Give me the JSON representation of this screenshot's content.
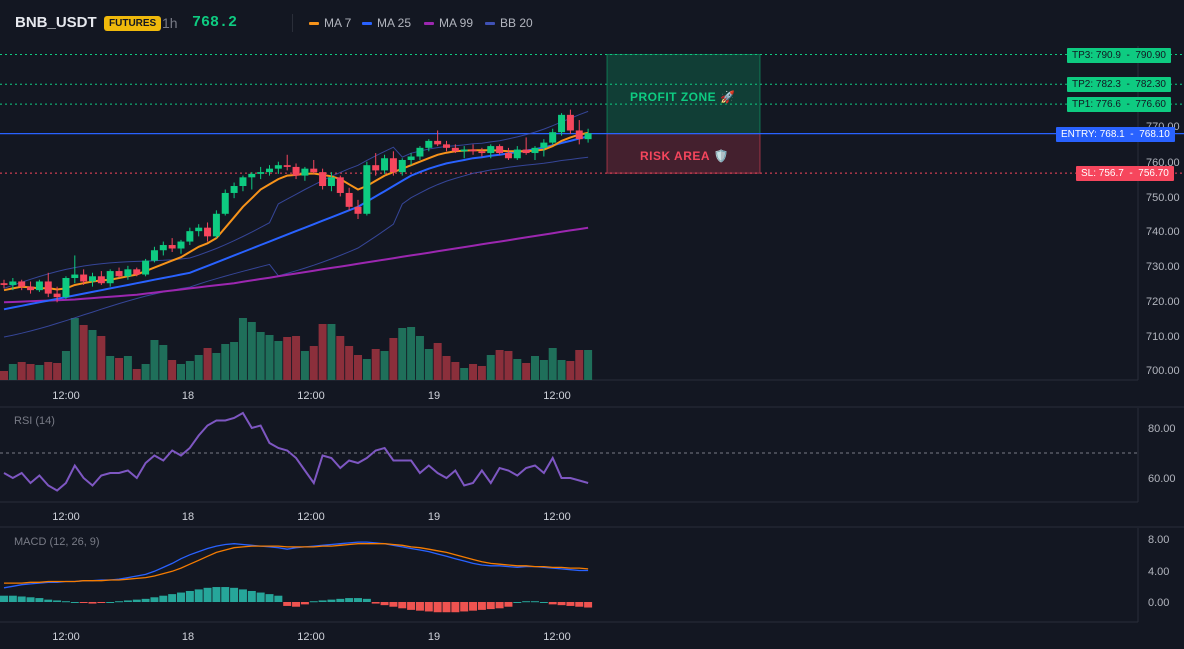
{
  "header": {
    "symbol": "BNB_USDT",
    "badge": "FUTURES",
    "timeframe": "1h",
    "last_price": "768.2",
    "legend": [
      {
        "label": "MA 7",
        "color": "#f7931a"
      },
      {
        "label": "MA 25",
        "color": "#2962ff"
      },
      {
        "label": "MA 99",
        "color": "#9c27b0"
      },
      {
        "label": "BB 20",
        "color": "#3f51b5"
      }
    ]
  },
  "colors": {
    "up": "#0ecb81",
    "down": "#f6465d",
    "vol_up": "#1f6f5a",
    "vol_down": "#8b2f3b",
    "ma7": "#f7931a",
    "ma25": "#2962ff",
    "ma99": "#9c27b0",
    "bb": "#3f51b5",
    "rsi": "#7e57c2",
    "macd": "#2962ff",
    "signal": "#f57c00",
    "hist_up": "#26a69a",
    "hist_down": "#ef5350",
    "entry": "#2962ff"
  },
  "price_axis": {
    "ticks": [
      "770.00",
      "760.00",
      "750.00",
      "740.00",
      "730.00",
      "720.00",
      "710.00",
      "700.00"
    ],
    "range": [
      695,
      795
    ]
  },
  "time_axis": [
    "12:00",
    "18",
    "12:00",
    "19",
    "12:00"
  ],
  "levels": {
    "tp3": {
      "tag": "TP3: 790.9",
      "value": "790.90",
      "price": 790.9
    },
    "tp2": {
      "tag": "TP2: 782.3",
      "value": "782.30",
      "price": 782.3
    },
    "tp1": {
      "tag": "TP1: 776.6",
      "value": "776.60",
      "price": 776.6
    },
    "entry": {
      "tag": "ENTRY: 768.1",
      "value": "768.10",
      "price": 768.1
    },
    "sl": {
      "tag": "SL: 756.7",
      "value": "756.70",
      "price": 756.7
    }
  },
  "zones": {
    "profit": "PROFIT ZONE 🚀",
    "risk": "RISK AREA 🛡️"
  },
  "rsi": {
    "title": "RSI (14)",
    "ticks": [
      "80.00",
      "60.00"
    ],
    "range": [
      50,
      90
    ],
    "level": 70,
    "values": [
      62,
      60,
      62,
      58,
      61,
      57,
      55,
      58,
      65,
      60,
      57,
      61,
      62,
      62,
      63,
      60,
      66,
      69,
      67,
      71,
      69,
      72,
      77,
      81,
      83,
      83,
      84,
      86,
      80,
      81,
      74,
      72,
      71,
      68,
      63,
      58,
      69,
      68,
      64,
      67,
      66,
      68,
      71,
      72,
      67,
      67,
      67,
      62,
      65,
      62,
      60,
      63,
      57,
      58,
      63,
      58,
      64,
      63,
      61,
      64,
      65,
      62,
      68,
      60,
      60,
      59,
      58
    ]
  },
  "macd": {
    "title": "MACD (12, 26, 9)",
    "ticks": [
      "8.00",
      "4.00",
      "0.00"
    ],
    "range": [
      -2,
      9
    ],
    "macd": [
      1.8,
      2.0,
      2.2,
      2.3,
      2.4,
      2.5,
      2.5,
      2.6,
      2.6,
      2.7,
      2.7,
      2.8,
      2.8,
      2.9,
      3.1,
      3.3,
      3.5,
      3.9,
      4.4,
      4.9,
      5.5,
      6.0,
      6.4,
      6.8,
      7.1,
      7.3,
      7.4,
      7.3,
      7.2,
      7.1,
      7.0,
      6.9,
      6.7,
      6.9,
      7.0,
      7.1,
      7.2,
      7.3,
      7.4,
      7.5,
      7.6,
      7.6,
      7.5,
      7.4,
      7.2,
      7.0,
      6.8,
      6.6,
      6.4,
      6.1,
      5.8,
      5.5,
      5.2,
      4.9,
      4.7,
      4.6,
      4.6,
      4.5,
      4.4,
      4.5,
      4.5,
      4.4,
      4.3,
      4.2,
      4.1,
      4.0,
      4.0
    ],
    "signal": [
      2.4,
      2.4,
      2.4,
      2.5,
      2.5,
      2.6,
      2.6,
      2.6,
      2.6,
      2.7,
      2.7,
      2.7,
      2.8,
      2.8,
      2.9,
      3.0,
      3.1,
      3.3,
      3.6,
      3.9,
      4.3,
      4.8,
      5.3,
      5.8,
      6.3,
      6.6,
      6.9,
      7.0,
      7.1,
      7.1,
      7.1,
      7.1,
      7.0,
      7.0,
      7.0,
      7.0,
      7.1,
      7.1,
      7.2,
      7.3,
      7.4,
      7.4,
      7.4,
      7.4,
      7.3,
      7.2,
      7.0,
      6.9,
      6.7,
      6.5,
      6.3,
      6.0,
      5.7,
      5.4,
      5.1,
      4.9,
      4.8,
      4.7,
      4.6,
      4.6,
      4.5,
      4.5,
      4.4,
      4.4,
      4.3,
      4.3,
      4.2
    ],
    "hist": [
      0.8,
      0.8,
      0.7,
      0.6,
      0.5,
      0.3,
      0.2,
      0.1,
      0.0,
      -0.1,
      -0.2,
      -0.1,
      0.0,
      0.1,
      0.2,
      0.3,
      0.4,
      0.6,
      0.8,
      1.0,
      1.2,
      1.4,
      1.6,
      1.8,
      1.9,
      1.9,
      1.8,
      1.6,
      1.4,
      1.2,
      1.0,
      0.8,
      -0.5,
      -0.6,
      -0.3,
      0.1,
      0.2,
      0.3,
      0.4,
      0.5,
      0.5,
      0.4,
      -0.2,
      -0.4,
      -0.6,
      -0.8,
      -1.0,
      -1.1,
      -1.2,
      -1.3,
      -1.3,
      -1.3,
      -1.2,
      -1.1,
      -1.0,
      -0.9,
      -0.8,
      -0.6,
      0.0,
      0.1,
      0.1,
      0.0,
      -0.3,
      -0.4,
      -0.5,
      -0.6,
      -0.7
    ]
  },
  "chart_data": {
    "type": "candlestick",
    "candles": [
      [
        725.0,
        726.0,
        723.5,
        724.5
      ],
      [
        724.5,
        726.5,
        723.0,
        725.5
      ],
      [
        725.5,
        726.0,
        723.0,
        724.0
      ],
      [
        724.0,
        725.5,
        722.0,
        723.0
      ],
      [
        723.0,
        726.0,
        722.5,
        725.5
      ],
      [
        725.5,
        728.0,
        721.0,
        722.0
      ],
      [
        722.0,
        724.0,
        719.5,
        721.0
      ],
      [
        721.0,
        727.0,
        720.5,
        726.5
      ],
      [
        726.5,
        733.0,
        725.0,
        727.5
      ],
      [
        727.5,
        729.0,
        724.5,
        725.5
      ],
      [
        725.5,
        728.0,
        724.0,
        727.0
      ],
      [
        727.0,
        728.5,
        724.5,
        725.0
      ],
      [
        725.0,
        729.0,
        724.0,
        728.5
      ],
      [
        728.5,
        729.5,
        726.5,
        727.0
      ],
      [
        727.0,
        730.0,
        726.0,
        729.0
      ],
      [
        729.0,
        729.5,
        727.0,
        727.5
      ],
      [
        727.5,
        732.0,
        727.0,
        731.5
      ],
      [
        731.5,
        735.5,
        731.0,
        734.5
      ],
      [
        734.5,
        737.0,
        733.0,
        736.0
      ],
      [
        736.0,
        738.0,
        734.0,
        735.0
      ],
      [
        735.0,
        737.5,
        733.5,
        737.0
      ],
      [
        737.0,
        741.0,
        736.0,
        740.0
      ],
      [
        740.0,
        742.0,
        738.5,
        741.0
      ],
      [
        741.0,
        742.5,
        737.0,
        738.5
      ],
      [
        738.5,
        746.0,
        738.0,
        745.0
      ],
      [
        745.0,
        752.0,
        744.5,
        751.0
      ],
      [
        751.0,
        754.0,
        749.5,
        753.0
      ],
      [
        753.0,
        756.0,
        751.5,
        755.5
      ],
      [
        755.5,
        757.0,
        752.0,
        756.5
      ],
      [
        756.5,
        758.5,
        755.0,
        757.0
      ],
      [
        757.0,
        759.0,
        756.0,
        758.0
      ],
      [
        758.0,
        760.0,
        756.5,
        759.0
      ],
      [
        759.0,
        762.0,
        757.5,
        758.5
      ],
      [
        758.5,
        759.5,
        755.0,
        756.0
      ],
      [
        756.0,
        758.5,
        754.5,
        758.0
      ],
      [
        758.0,
        760.5,
        756.5,
        757.0
      ],
      [
        757.0,
        758.0,
        752.0,
        753.0
      ],
      [
        753.0,
        757.0,
        751.5,
        755.5
      ],
      [
        755.5,
        756.0,
        750.0,
        751.0
      ],
      [
        751.0,
        752.5,
        746.0,
        747.0
      ],
      [
        747.0,
        749.0,
        743.5,
        745.0
      ],
      [
        745.0,
        760.0,
        744.5,
        759.0
      ],
      [
        759.0,
        762.5,
        756.0,
        757.5
      ],
      [
        757.5,
        762.0,
        756.5,
        761.0
      ],
      [
        761.0,
        763.0,
        756.0,
        757.0
      ],
      [
        757.0,
        761.0,
        756.0,
        760.5
      ],
      [
        760.5,
        762.5,
        759.0,
        761.5
      ],
      [
        761.5,
        764.5,
        760.5,
        764.0
      ],
      [
        764.0,
        766.5,
        763.0,
        766.0
      ],
      [
        766.0,
        769.0,
        764.5,
        765.0
      ],
      [
        765.0,
        766.0,
        763.0,
        764.0
      ],
      [
        764.0,
        765.0,
        762.5,
        763.0
      ],
      [
        763.0,
        764.5,
        761.0,
        763.5
      ],
      [
        763.5,
        765.0,
        762.0,
        763.0
      ],
      [
        763.0,
        764.0,
        761.5,
        762.5
      ],
      [
        762.5,
        765.0,
        761.0,
        764.5
      ],
      [
        764.5,
        765.0,
        762.0,
        762.5
      ],
      [
        762.5,
        764.0,
        760.5,
        761.0
      ],
      [
        761.0,
        764.5,
        760.5,
        763.5
      ],
      [
        763.5,
        767.0,
        762.0,
        762.5
      ],
      [
        762.5,
        764.5,
        760.5,
        764.0
      ],
      [
        764.0,
        766.5,
        761.5,
        765.5
      ],
      [
        765.5,
        769.5,
        765.0,
        768.5
      ],
      [
        768.5,
        774.0,
        767.5,
        773.5
      ],
      [
        773.5,
        775.0,
        768.0,
        769.0
      ],
      [
        769.0,
        772.0,
        765.0,
        766.5
      ],
      [
        766.5,
        769.5,
        765.5,
        768.2
      ]
    ],
    "volume": [
      9,
      16,
      18,
      16,
      15,
      18,
      17,
      29,
      62,
      55,
      50,
      44,
      24,
      22,
      24,
      11,
      16,
      40,
      35,
      20,
      16,
      19,
      25,
      32,
      27,
      36,
      38,
      62,
      58,
      48,
      45,
      39,
      43,
      44,
      29,
      34,
      56,
      56,
      44,
      34,
      25,
      21,
      31,
      29,
      42,
      52,
      53,
      44,
      31,
      37,
      24,
      18,
      12,
      16,
      14,
      25,
      30,
      29,
      21,
      17,
      24,
      20,
      32,
      20,
      19,
      30,
      30
    ],
    "ma7": [
      723,
      723.5,
      724,
      723.8,
      723.5,
      723.6,
      723.2,
      723.5,
      724.5,
      725,
      725.5,
      725.8,
      726,
      726.5,
      727,
      727.5,
      728.5,
      729.5,
      730.5,
      731.5,
      732.5,
      734,
      735.5,
      736.5,
      738,
      741,
      744,
      747,
      749.5,
      752,
      753.5,
      755,
      756,
      756.2,
      756.5,
      756.6,
      756.2,
      755.8,
      755,
      753.5,
      752,
      753,
      754.5,
      756,
      757,
      758,
      759,
      760,
      761,
      762,
      762.6,
      763,
      763.2,
      763.3,
      763.3,
      763.3,
      763.2,
      763,
      763,
      763,
      763.2,
      763.5,
      764.5,
      766,
      767,
      767.8,
      768.3
    ],
    "ma25": [
      717.5,
      718,
      718.5,
      719,
      719.5,
      720,
      720.5,
      721,
      721.5,
      722,
      722.5,
      723,
      723.5,
      724,
      724.5,
      725,
      725.5,
      726,
      726.5,
      727,
      727.5,
      728,
      729,
      730,
      731,
      732,
      733,
      734,
      735,
      736,
      737,
      738,
      739,
      740,
      741,
      742,
      743,
      744,
      745,
      746,
      747,
      748.5,
      750,
      751.5,
      753,
      754.5,
      756,
      757,
      758,
      758.8,
      759.5,
      760,
      760.5,
      761,
      761.3,
      761.7,
      762,
      762.4,
      762.8,
      763.2,
      763.6,
      764.1,
      764.7,
      765.4,
      766,
      766.7,
      767.3
    ],
    "ma99": [
      719.5,
      719.6,
      719.7,
      719.8,
      719.9,
      720,
      720.1,
      720.2,
      720.3,
      720.5,
      720.7,
      720.9,
      721.1,
      721.3,
      721.5,
      721.7,
      722,
      722.3,
      722.6,
      722.9,
      723.2,
      723.5,
      723.8,
      724.1,
      724.4,
      724.7,
      725,
      725.4,
      725.8,
      726.2,
      726.6,
      727,
      727.4,
      727.8,
      728.2,
      728.6,
      729,
      729.4,
      729.8,
      730.2,
      730.6,
      731,
      731.4,
      731.8,
      732.2,
      732.6,
      733,
      733.4,
      733.8,
      734.2,
      734.6,
      735,
      735.4,
      735.8,
      736.2,
      736.6,
      737,
      737.4,
      737.8,
      738.2,
      738.6,
      739,
      739.4,
      739.8,
      740.2,
      740.6,
      741
    ]
  }
}
